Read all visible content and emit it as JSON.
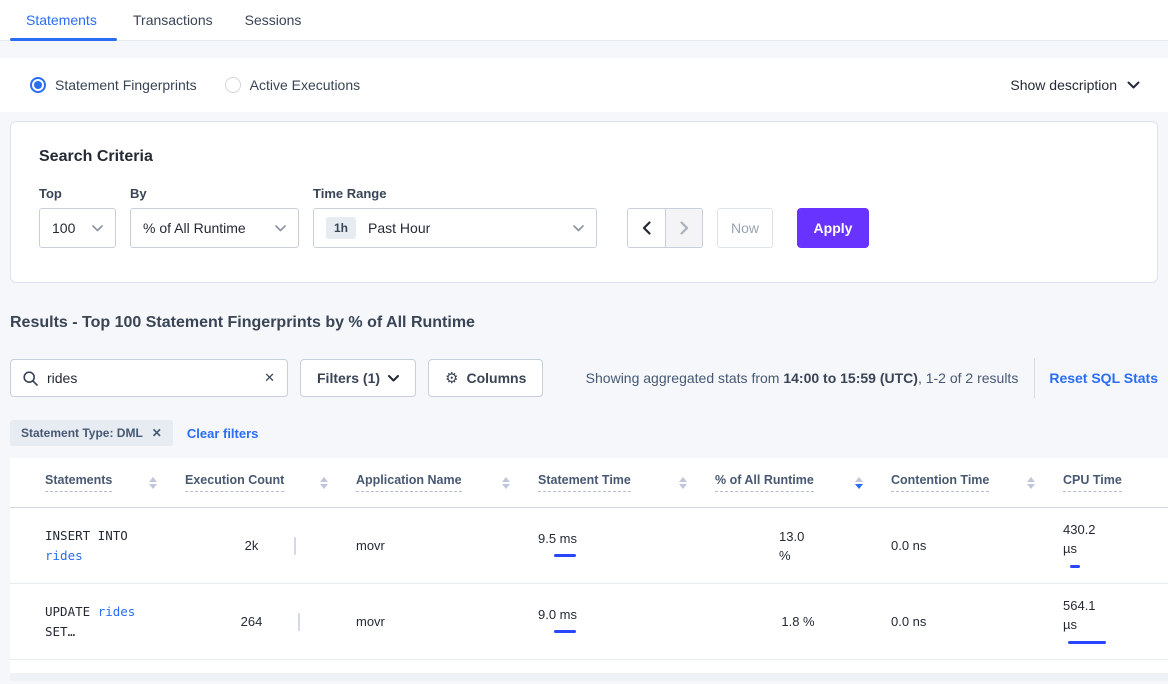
{
  "tabs": [
    {
      "label": "Statements",
      "active": true
    },
    {
      "label": "Transactions",
      "active": false
    },
    {
      "label": "Sessions",
      "active": false
    }
  ],
  "view_toggle": {
    "options": [
      {
        "label": "Statement Fingerprints",
        "selected": true
      },
      {
        "label": "Active Executions",
        "selected": false
      }
    ],
    "show_description_label": "Show description"
  },
  "search_criteria": {
    "title": "Search Criteria",
    "top": {
      "label": "Top",
      "value": "100"
    },
    "by": {
      "label": "By",
      "value": "% of All Runtime"
    },
    "time_range": {
      "label": "Time Range",
      "badge": "1h",
      "value": "Past Hour"
    },
    "now_label": "Now",
    "apply_label": "Apply"
  },
  "results": {
    "heading": "Results - Top 100 Statement Fingerprints by % of All Runtime",
    "search_value": "rides",
    "filters_label": "Filters (1)",
    "columns_label": "Columns",
    "showing_prefix": "Showing aggregated stats from ",
    "showing_range": "14:00 to 15:59 (UTC)",
    "showing_suffix": ", 1-2 of 2 results",
    "reset_label": "Reset SQL Stats",
    "filter_tag": "Statement Type: DML",
    "clear_filters_label": "Clear filters"
  },
  "table": {
    "headers": [
      {
        "label": "Statements"
      },
      {
        "label": "Execution Count"
      },
      {
        "label": "Application Name"
      },
      {
        "label": "Statement Time"
      },
      {
        "label": "% of All Runtime",
        "sorted": "desc"
      },
      {
        "label": "Contention Time"
      },
      {
        "label": "CPU Time"
      }
    ],
    "rows": [
      {
        "stmt_pre": "INSERT INTO",
        "stmt_link": "rides",
        "stmt_post": "",
        "exec_count": "2k",
        "app_name": "movr",
        "stmt_time": "9.5 ms",
        "stmt_time_bar": {
          "grey": 32,
          "blue_w": 22,
          "blue_l": 16
        },
        "runtime": "13.0 %",
        "runtime_bar": {
          "grey": 47,
          "blue_w": 0,
          "blue_l": 0
        },
        "contention": "0.0 ns",
        "cpu": "430.2 µs",
        "cpu_bar": {
          "grey": 12,
          "blue_w": 10,
          "blue_l": 7
        }
      },
      {
        "stmt_pre": "UPDATE",
        "stmt_link": "rides",
        "stmt_post": "SET…",
        "exec_count": "264",
        "app_name": "movr",
        "stmt_time": "9.0 ms",
        "stmt_time_bar": {
          "grey": 32,
          "blue_w": 22,
          "blue_l": 16
        },
        "runtime": "1.8 %",
        "runtime_bar": {
          "grey": 5,
          "blue_w": 0,
          "blue_l": 0
        },
        "contention": "0.0 ns",
        "cpu": "564.1 µs",
        "cpu_bar": {
          "grey": 22,
          "blue_w": 38,
          "blue_l": 5
        }
      }
    ]
  },
  "colors": {
    "accent_purple": "#6933ff",
    "link_blue": "#2a6df4",
    "bar_blue": "#2945ff",
    "bar_grey": "#c3cadb",
    "page_bg": "#f5f7fa"
  }
}
